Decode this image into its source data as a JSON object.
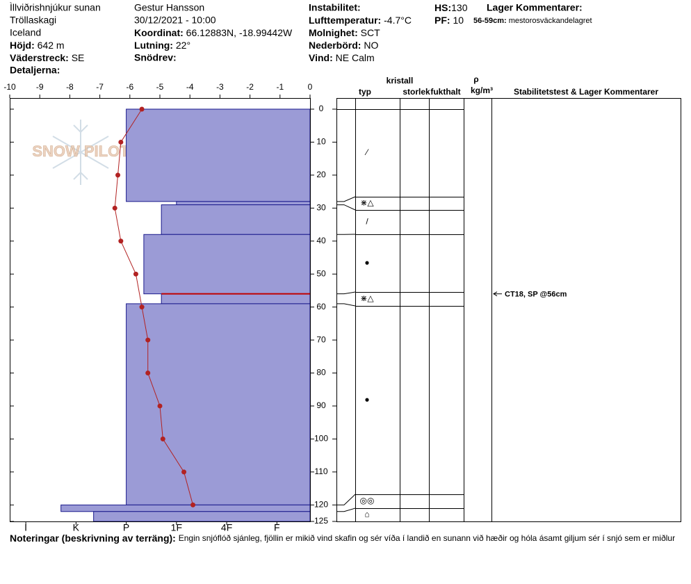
{
  "header": {
    "location": "Ìllviðrishnjúkur sunan",
    "range": "Tröllaskagi",
    "country": "Iceland",
    "elevation": {
      "label": "Höjd:",
      "value": "642 m"
    },
    "aspect": {
      "label": "Väderstreck:",
      "value": "SE"
    },
    "details": {
      "label": "Detaljerna:"
    },
    "observer": "Gestur Hansson",
    "datetime": "30/12/2021 - 10:00",
    "coordinates": {
      "label": "Koordinat:",
      "value": "66.12883N, -18.99442W"
    },
    "slope": {
      "label": "Lutning:",
      "value": "22°"
    },
    "wind_loading": {
      "label": "Snödrev:"
    },
    "instability": {
      "label": "Instabilitet:"
    },
    "air_temperature": {
      "label": "Lufttemperatur:",
      "value": "-4.7°C"
    },
    "sky": {
      "label": "Molnighet:",
      "value": "SCT"
    },
    "precipitation": {
      "label": "Nederbörd:",
      "value": "NO"
    },
    "wind": {
      "label": "Vind:",
      "value": "NE Calm"
    },
    "hs": {
      "label": "HS:",
      "value": "130"
    },
    "pf": {
      "label": "PF:",
      "value": "10"
    },
    "layer_comments": {
      "label": "Lager Kommentarer:",
      "items": [
        {
          "range": "56-59cm:",
          "text": "mestorosväckandelagret"
        }
      ]
    }
  },
  "watermark": "SNOW PILOT",
  "chart_data": {
    "type": "snow-profile",
    "ylim": [
      0,
      125
    ],
    "yticks": [
      0,
      10,
      20,
      30,
      40,
      50,
      60,
      70,
      80,
      90,
      100,
      110,
      120,
      125
    ],
    "temperature": {
      "name": "Temperature",
      "color": "#b22222",
      "xlim": [
        -10,
        0
      ],
      "xticks": [
        -10,
        -9,
        -8,
        -7,
        -6,
        -5,
        -4,
        -3,
        -2,
        -1,
        0
      ],
      "depths": [
        0,
        10,
        20,
        30,
        40,
        50,
        60,
        70,
        80,
        90,
        100,
        110,
        120
      ],
      "values": [
        -5.6,
        -6.3,
        -6.4,
        -6.5,
        -6.3,
        -5.8,
        -5.6,
        -5.4,
        -5.4,
        -5.0,
        -4.9,
        -4.2,
        -3.9
      ]
    },
    "hardness": {
      "color": "#9b9bd6",
      "edge_color": "#1a1a8c",
      "xlim": [
        6.32,
        0.34
      ],
      "xticks": [
        {
          "value": 6,
          "label": "I"
        },
        {
          "value": 5,
          "label": "K"
        },
        {
          "value": 4,
          "label": "P"
        },
        {
          "value": 3,
          "label": "1F"
        },
        {
          "value": 2,
          "label": "4F"
        },
        {
          "value": 1,
          "label": "F"
        }
      ],
      "layer_boundaries": [
        0,
        28,
        29,
        38,
        56,
        59,
        120,
        122,
        125
      ],
      "values": [
        4,
        3,
        3.3,
        3.65,
        3.3,
        4,
        5.3,
        4.65
      ]
    },
    "weak_layer": {
      "depth": 56,
      "color": "#c00000"
    },
    "stability_test": {
      "text": "CT18, SP @56cm",
      "depth": 56
    }
  },
  "layer_table": {
    "headers": {
      "crystal": "kristall",
      "type": "typ",
      "size": "storlek",
      "moisture": "fukthalt",
      "density_symbol": "ρ",
      "density_unit": "kg/m³",
      "comments": "Stabilitetstest & Lager Kommentarer"
    },
    "grain_forms": [
      "⁄",
      "⋇△",
      "/",
      "●",
      "⋇△",
      "●",
      "◎◎",
      "⌂"
    ]
  },
  "notes": {
    "label": "Noteringar (beskrivning av terräng):",
    "text": "Engin snjóflóð sjánleg, fjöllin er mikið vind skafin og sér víða í landið en sunann við hæðir og hóla ásamt giljum sér í snjó sem er miðlur"
  }
}
